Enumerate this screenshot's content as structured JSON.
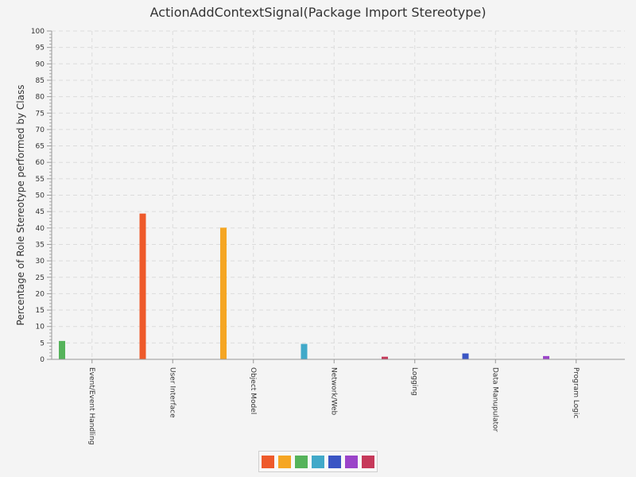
{
  "chart_data": {
    "type": "bar",
    "title": "ActionAddContextSignal(Package Import Stereotype)",
    "xlabel": "",
    "ylabel": "Percentage of Role Stereotype performed by Class",
    "ylim": [
      0,
      100
    ],
    "yticks": [
      0,
      5,
      10,
      15,
      20,
      25,
      30,
      35,
      40,
      45,
      50,
      55,
      60,
      65,
      70,
      75,
      80,
      85,
      90,
      95,
      100
    ],
    "grid": true,
    "legend_position": "bottom-center",
    "categories": [
      "Event/Event Handling",
      "User Interface",
      "Object Model",
      "Network/Web",
      "Logging",
      "Data Manupulator",
      "Program Logic"
    ],
    "values": [
      5.6,
      44.4,
      40.1,
      4.7,
      0.8,
      1.8,
      1.0
    ],
    "colors": [
      "#55b35a",
      "#ee5a2b",
      "#f5a623",
      "#41a9c9",
      "#c6395a",
      "#3a55c4",
      "#9b44c9"
    ],
    "legend_colors": [
      "#ee5a2b",
      "#f5a623",
      "#55b35a",
      "#41a9c9",
      "#3a55c4",
      "#9b44c9",
      "#c6395a"
    ]
  }
}
